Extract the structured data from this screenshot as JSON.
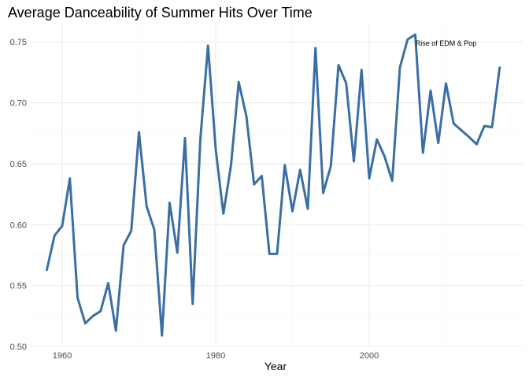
{
  "chart_data": {
    "type": "line",
    "title": "Average Danceability of Summer Hits Over Time",
    "xlabel": "Year",
    "ylabel": "",
    "xlim": [
      1956,
      2020
    ],
    "ylim": [
      0.5,
      0.765
    ],
    "x_ticks": [
      1960,
      1980,
      2000
    ],
    "x_tick_labels": [
      "1960",
      "1980",
      "2000"
    ],
    "y_ticks": [
      0.5,
      0.55,
      0.6,
      0.65,
      0.7,
      0.75
    ],
    "y_tick_labels": [
      "0.50",
      "0.55",
      "0.60",
      "0.65",
      "0.70",
      "0.75"
    ],
    "grid": true,
    "line_color": "#3a6fa5",
    "annotation": {
      "text": "Rise of EDM & Pop",
      "x": 2010,
      "y": 0.7487
    },
    "series": [
      {
        "x": [
          1958,
          1959,
          1960,
          1961,
          1962,
          1963,
          1964,
          1965,
          1966,
          1967,
          1968,
          1969,
          1970,
          1971,
          1972,
          1973,
          1974,
          1975,
          1976,
          1977,
          1978,
          1979,
          1980,
          1981,
          1982,
          1983,
          1984,
          1985,
          1986,
          1987,
          1988,
          1989,
          1990,
          1991,
          1992,
          1993,
          1994,
          1995,
          1996,
          1997,
          1998,
          1999,
          2000,
          2001,
          2002,
          2003,
          2004,
          2005,
          2006,
          2007,
          2008,
          2009,
          2010,
          2011,
          2013,
          2014,
          2015,
          2016,
          2017
        ],
        "values": [
          0.563,
          0.591,
          0.599,
          0.638,
          0.54,
          0.519,
          0.525,
          0.529,
          0.552,
          0.513,
          0.583,
          0.595,
          0.676,
          0.615,
          0.596,
          0.509,
          0.618,
          0.577,
          0.671,
          0.535,
          0.67,
          0.747,
          0.662,
          0.609,
          0.649,
          0.717,
          0.689,
          0.633,
          0.64,
          0.576,
          0.576,
          0.649,
          0.611,
          0.645,
          0.613,
          0.745,
          0.626,
          0.648,
          0.731,
          0.716,
          0.652,
          0.727,
          0.638,
          0.67,
          0.656,
          0.636,
          0.729,
          0.752,
          0.756,
          0.659,
          0.71,
          0.667,
          0.716,
          0.683,
          0.672,
          0.666,
          0.681,
          0.68,
          0.729
        ]
      }
    ]
  }
}
